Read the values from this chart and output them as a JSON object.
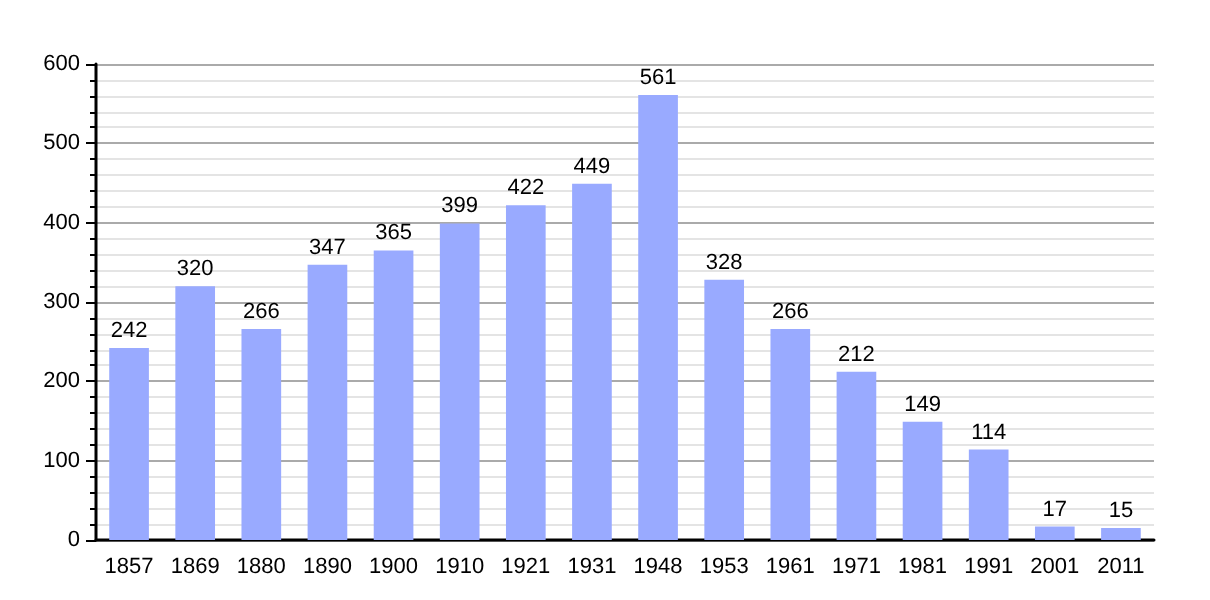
{
  "chart_data": {
    "type": "bar",
    "categories": [
      "1857",
      "1869",
      "1880",
      "1890",
      "1900",
      "1910",
      "1921",
      "1931",
      "1948",
      "1953",
      "1961",
      "1971",
      "1981",
      "1991",
      "2001",
      "2011"
    ],
    "values": [
      242,
      320,
      266,
      347,
      365,
      399,
      422,
      449,
      561,
      328,
      266,
      212,
      149,
      114,
      17,
      15
    ],
    "color": "#99aaff",
    "ylim": [
      0,
      600
    ],
    "yticks": [
      0,
      100,
      200,
      300,
      400,
      500,
      600
    ],
    "grid": "y",
    "data_labels": true
  }
}
